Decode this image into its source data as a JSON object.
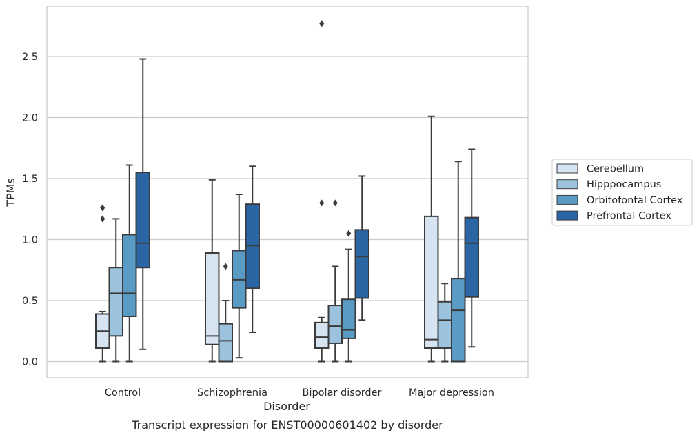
{
  "chart_data": {
    "type": "box",
    "ylabel": "TPMs",
    "xlabel": "Disorder",
    "caption": "Transcript expression for ENST00000601402 by disorder",
    "ylim": [
      -0.13,
      2.92
    ],
    "yticks": [
      "0.0",
      "0.5",
      "1.0",
      "1.5",
      "2.0",
      "2.5"
    ],
    "grid": "horizontal",
    "legend_position": "right",
    "categories": [
      "Control",
      "Schizophrenia",
      "Bipolar disorder",
      "Major depression"
    ],
    "series": [
      {
        "name": "Cerebellum",
        "color": "#d6e4f2",
        "boxes": [
          {
            "whislo": 0.0,
            "q1": 0.11,
            "med": 0.25,
            "q3": 0.39,
            "whishi": 0.41,
            "fliers": [
              1.17,
              1.26
            ]
          },
          {
            "whislo": 0.0,
            "q1": 0.14,
            "med": 0.21,
            "q3": 0.89,
            "whishi": 1.49,
            "fliers": []
          },
          {
            "whislo": 0.0,
            "q1": 0.11,
            "med": 0.2,
            "q3": 0.32,
            "whishi": 0.36,
            "fliers": [
              1.3,
              2.77
            ]
          },
          {
            "whislo": 0.0,
            "q1": 0.11,
            "med": 0.18,
            "q3": 1.19,
            "whishi": 2.01,
            "fliers": []
          }
        ]
      },
      {
        "name": "Hipppocampus",
        "color": "#9cc3dd",
        "boxes": [
          {
            "whislo": 0.0,
            "q1": 0.21,
            "med": 0.56,
            "q3": 0.77,
            "whishi": 1.17,
            "fliers": []
          },
          {
            "whislo": 0.0,
            "q1": 0.0,
            "med": 0.17,
            "q3": 0.31,
            "whishi": 0.5,
            "fliers": [
              0.78
            ]
          },
          {
            "whislo": 0.0,
            "q1": 0.15,
            "med": 0.29,
            "q3": 0.46,
            "whishi": 0.78,
            "fliers": [
              1.3
            ]
          },
          {
            "whislo": 0.0,
            "q1": 0.11,
            "med": 0.34,
            "q3": 0.49,
            "whishi": 0.64,
            "fliers": []
          }
        ]
      },
      {
        "name": "Orbitofontal Cortex",
        "color": "#5a9bc6",
        "boxes": [
          {
            "whislo": 0.0,
            "q1": 0.37,
            "med": 0.56,
            "q3": 1.04,
            "whishi": 1.61,
            "fliers": []
          },
          {
            "whislo": 0.03,
            "q1": 0.44,
            "med": 0.67,
            "q3": 0.91,
            "whishi": 1.37,
            "fliers": []
          },
          {
            "whislo": 0.0,
            "q1": 0.19,
            "med": 0.26,
            "q3": 0.51,
            "whishi": 0.92,
            "fliers": [
              1.05
            ]
          },
          {
            "whislo": 0.0,
            "q1": 0.0,
            "med": 0.42,
            "q3": 0.68,
            "whishi": 1.64,
            "fliers": []
          }
        ]
      },
      {
        "name": "Prefrontal Cortex",
        "color": "#2b66a4",
        "boxes": [
          {
            "whislo": 0.1,
            "q1": 0.77,
            "med": 0.97,
            "q3": 1.55,
            "whishi": 2.48,
            "fliers": []
          },
          {
            "whislo": 0.24,
            "q1": 0.6,
            "med": 0.95,
            "q3": 1.29,
            "whishi": 1.6,
            "fliers": []
          },
          {
            "whislo": 0.34,
            "q1": 0.52,
            "med": 0.86,
            "q3": 1.08,
            "whishi": 1.52,
            "fliers": []
          },
          {
            "whislo": 0.12,
            "q1": 0.53,
            "med": 0.97,
            "q3": 1.18,
            "whishi": 1.74,
            "fliers": []
          }
        ]
      }
    ]
  }
}
